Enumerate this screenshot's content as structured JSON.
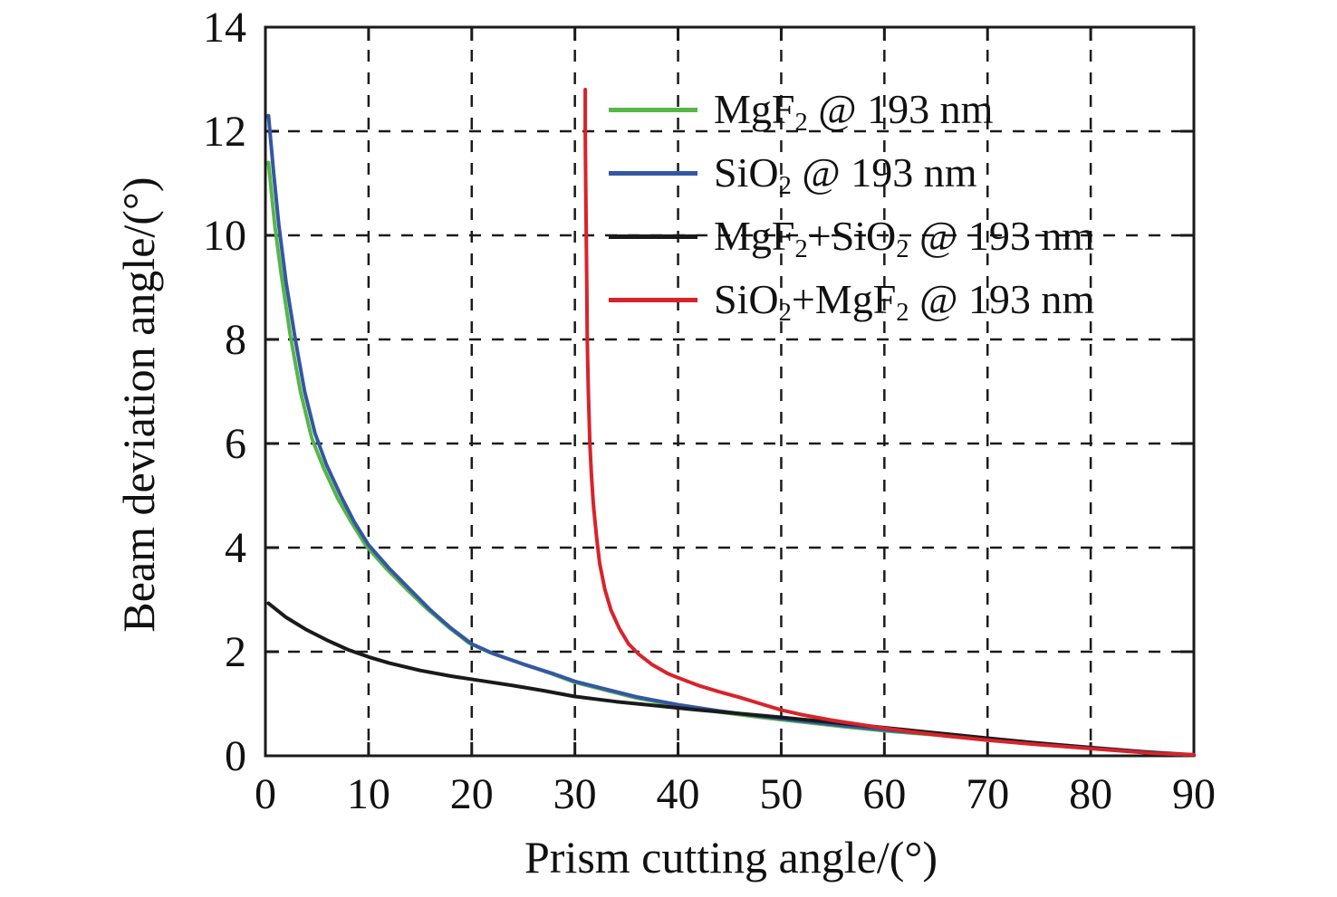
{
  "figure": {
    "background_color": "#ffffff",
    "axis_color": "#1a1a1a",
    "text_color": "#111111"
  },
  "chart_data": {
    "type": "line",
    "title": "",
    "xlabel": "Prism cutting angle/(°)",
    "ylabel": "Beam deviation angle/(°)",
    "xlim": [
      0,
      90
    ],
    "ylim": [
      0,
      14
    ],
    "xticks": [
      0,
      10,
      20,
      30,
      40,
      50,
      60,
      70,
      80,
      90
    ],
    "yticks": [
      0,
      2,
      4,
      6,
      8,
      10,
      12,
      14
    ],
    "grid": "dashed both axes, black",
    "legend_position": "upper right, inside plot, no box",
    "series": [
      {
        "id": "mgf2",
        "name": "MgF_2 @ 193 nm",
        "color": "#56b647",
        "x": [
          0.3,
          0.9,
          1.5,
          2.4,
          3.4,
          4.5,
          5.6,
          7.0,
          8.3,
          9.7,
          11.7,
          13.7,
          15.7,
          17.7,
          19.7,
          21.7,
          24.7,
          27.7,
          30,
          33,
          36,
          40,
          44,
          48,
          52,
          56,
          60,
          65,
          70,
          75,
          80,
          85,
          90
        ],
        "y": [
          11.4,
          10.2,
          9.3,
          8.1,
          7.0,
          6.1,
          5.55,
          4.95,
          4.5,
          4.05,
          3.6,
          3.2,
          2.82,
          2.48,
          2.17,
          1.99,
          1.78,
          1.58,
          1.41,
          1.26,
          1.11,
          0.96,
          0.84,
          0.74,
          0.65,
          0.56,
          0.48,
          0.4,
          0.31,
          0.23,
          0.15,
          0.07,
          0.01
        ]
      },
      {
        "id": "sio2",
        "name": "SiO_2 @ 193 nm",
        "color": "#3457a4",
        "x": [
          0.3,
          0.8,
          1.3,
          2.0,
          2.9,
          3.8,
          4.8,
          5.9,
          7.3,
          8.6,
          10,
          12,
          14,
          16,
          18,
          20,
          22,
          25,
          28,
          30,
          33,
          36,
          40,
          44,
          48,
          52,
          56,
          60,
          65,
          70,
          75,
          80,
          85,
          90
        ],
        "y": [
          12.3,
          11.2,
          10.2,
          9.1,
          8.0,
          7.0,
          6.2,
          5.6,
          5.0,
          4.5,
          4.05,
          3.6,
          3.2,
          2.8,
          2.45,
          2.15,
          1.97,
          1.76,
          1.57,
          1.43,
          1.28,
          1.13,
          0.98,
          0.86,
          0.76,
          0.67,
          0.58,
          0.5,
          0.41,
          0.32,
          0.24,
          0.16,
          0.08,
          0.02
        ]
      },
      {
        "id": "mgf2-sio2",
        "name": "MgF_2+SiO_2 @ 193 nm",
        "color": "#1a1a1a",
        "x": [
          0.3,
          2,
          4,
          6,
          8,
          10,
          12,
          15,
          18,
          21,
          24,
          27,
          30,
          34,
          38,
          42,
          46,
          50,
          54,
          58,
          62,
          66,
          70,
          74,
          78,
          82,
          86,
          90
        ],
        "y": [
          2.93,
          2.66,
          2.42,
          2.22,
          2.04,
          1.9,
          1.78,
          1.64,
          1.53,
          1.44,
          1.35,
          1.25,
          1.14,
          1.04,
          0.96,
          0.88,
          0.81,
          0.74,
          0.66,
          0.58,
          0.5,
          0.42,
          0.34,
          0.26,
          0.19,
          0.12,
          0.06,
          0.01
        ]
      },
      {
        "id": "sio2-mgf2",
        "name": "SiO_2+MgF_2 @ 193 nm",
        "color": "#d8232b",
        "x": [
          31.0,
          31.0,
          31.05,
          31.1,
          31.15,
          31.2,
          31.3,
          31.45,
          31.6,
          31.8,
          32.1,
          32.4,
          32.9,
          33.5,
          34.3,
          35.2,
          36.2,
          37.5,
          39,
          40,
          42,
          44,
          46,
          48,
          50,
          52,
          55,
          58,
          60,
          63,
          66,
          70,
          74,
          78,
          82,
          86,
          90
        ],
        "y": [
          12.8,
          12,
          11,
          10,
          9,
          8,
          7,
          6,
          5.4,
          4.8,
          4.2,
          3.7,
          3.2,
          2.8,
          2.45,
          2.15,
          1.95,
          1.75,
          1.58,
          1.5,
          1.35,
          1.23,
          1.12,
          1.0,
          0.88,
          0.79,
          0.68,
          0.59,
          0.53,
          0.45,
          0.38,
          0.3,
          0.23,
          0.17,
          0.11,
          0.05,
          0.02
        ]
      }
    ]
  }
}
